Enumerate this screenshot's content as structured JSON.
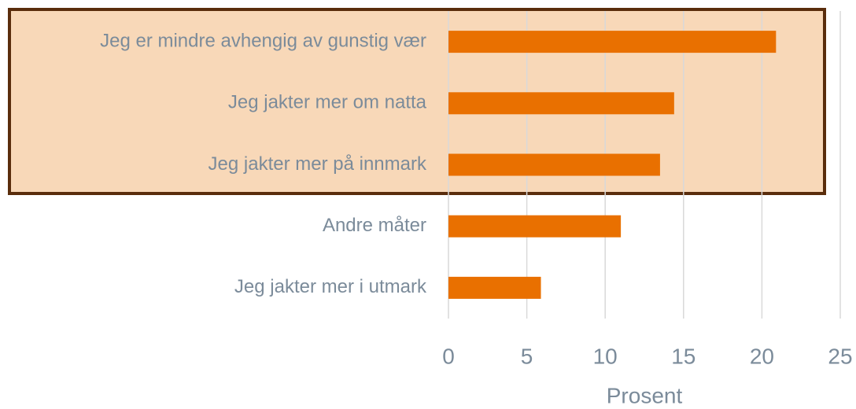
{
  "chart_data": {
    "type": "bar",
    "orientation": "horizontal",
    "categories": [
      "Jeg er mindre avhengig av gunstig vær",
      "Jeg jakter mer om natta",
      "Jeg jakter mer på innmark",
      "Andre måter",
      "Jeg jakter mer i utmark"
    ],
    "values": [
      20.9,
      14.4,
      13.5,
      11.0,
      5.9
    ],
    "color": "#e97000",
    "x_label": "Prosent",
    "xlim": [
      0,
      25
    ],
    "xticks": [
      0,
      5,
      10,
      15,
      20,
      25
    ],
    "grid": true
  }
}
